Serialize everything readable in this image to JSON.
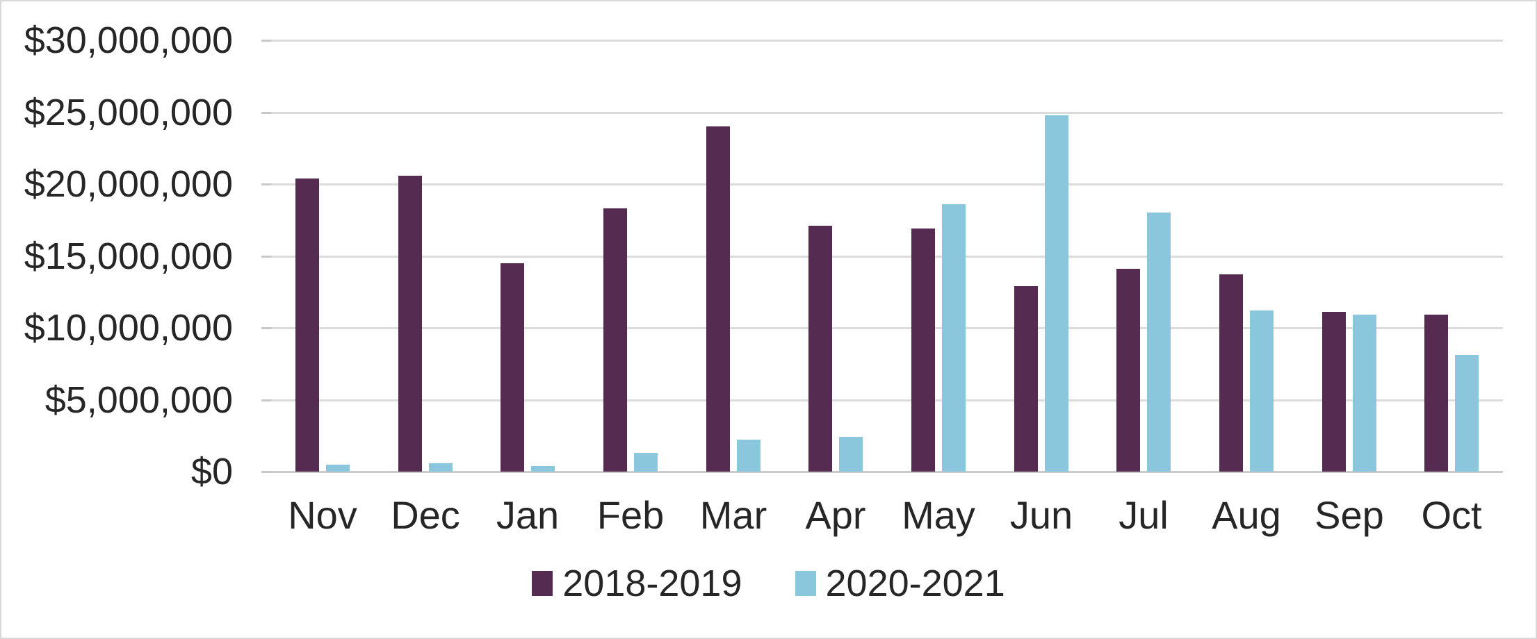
{
  "chart_data": {
    "type": "bar",
    "title": "",
    "xlabel": "",
    "ylabel": "",
    "categories": [
      "Nov",
      "Dec",
      "Jan",
      "Feb",
      "Mar",
      "Apr",
      "May",
      "Jun",
      "Jul",
      "Aug",
      "Sep",
      "Oct"
    ],
    "series": [
      {
        "name": "2018-2019",
        "color": "#552b51",
        "values": [
          20400000,
          20600000,
          14500000,
          18300000,
          24000000,
          17100000,
          16900000,
          12900000,
          14100000,
          13700000,
          11100000,
          10900000
        ]
      },
      {
        "name": "2020-2021",
        "color": "#8ac6dc",
        "values": [
          500000,
          600000,
          400000,
          1300000,
          2200000,
          2400000,
          18600000,
          24800000,
          18000000,
          11200000,
          10900000,
          8100000
        ]
      }
    ],
    "ylim": [
      0,
      30000000
    ],
    "y_ticks": [
      {
        "label": "$0",
        "value": 0
      },
      {
        "label": "$5,000,000",
        "value": 5000000
      },
      {
        "label": "$10,000,000",
        "value": 10000000
      },
      {
        "label": "$15,000,000",
        "value": 15000000
      },
      {
        "label": "$20,000,000",
        "value": 20000000
      },
      {
        "label": "$25,000,000",
        "value": 25000000
      },
      {
        "label": "$30,000,000",
        "value": 30000000
      }
    ],
    "grid": "horizontal",
    "legend_position": "bottom-center",
    "colors": {
      "gridline": "#dbdbdb",
      "axis_text": "#262626",
      "background": "#ffffff",
      "border": "#d8d8d8"
    }
  }
}
